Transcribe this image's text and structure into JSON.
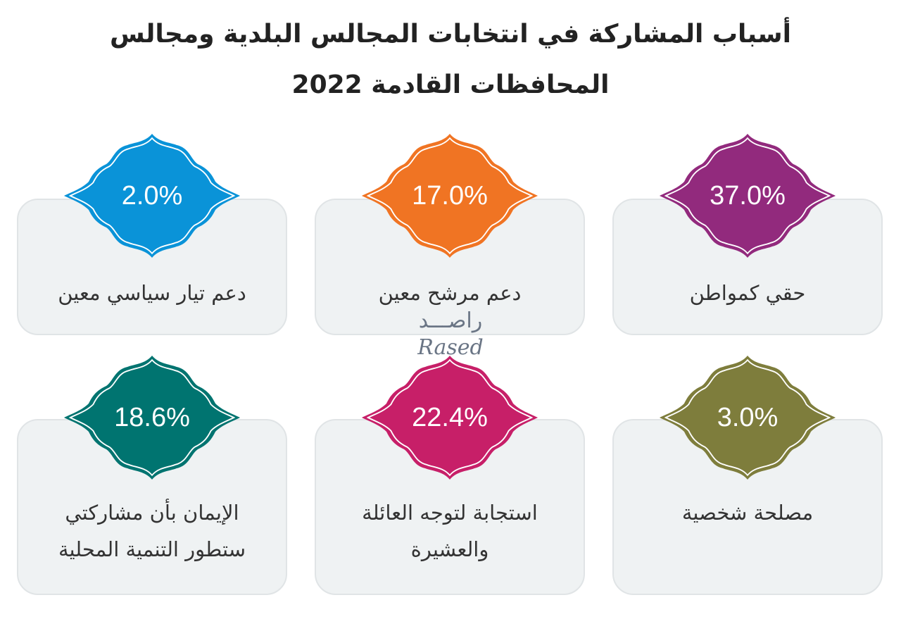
{
  "title_line1": "أسباب المشاركة في انتخابات المجالس البلدية ومجالس",
  "title_line2": "المحافظات القادمة 2022",
  "watermark": {
    "arabic": "راصـــد",
    "latin": "Rased"
  },
  "chart_data": {
    "type": "table",
    "title": "أسباب المشاركة في انتخابات المجالس البلدية ومجالس المحافظات القادمة 2022",
    "items": [
      {
        "label": "حقي كمواطن",
        "value": 37.0,
        "display": "37.0%",
        "color": "#922a7d"
      },
      {
        "label": "دعم مرشح معين",
        "value": 17.0,
        "display": "17.0%",
        "color": "#f07423"
      },
      {
        "label": "دعم تيار سياسي معين",
        "value": 2.0,
        "display": "2.0%",
        "color": "#0a93d8"
      },
      {
        "label": "مصلحة شخصية",
        "value": 3.0,
        "display": "3.0%",
        "color": "#7e7d3c"
      },
      {
        "label": "استجابة لتوجه العائلة والعشيرة",
        "value": 22.4,
        "display": "22.4%",
        "color": "#c71f68"
      },
      {
        "label": "الإيمان بأن مشاركتي ستطور التنمية المحلية",
        "value": 18.6,
        "display": "18.6%",
        "color": "#007470"
      }
    ]
  }
}
